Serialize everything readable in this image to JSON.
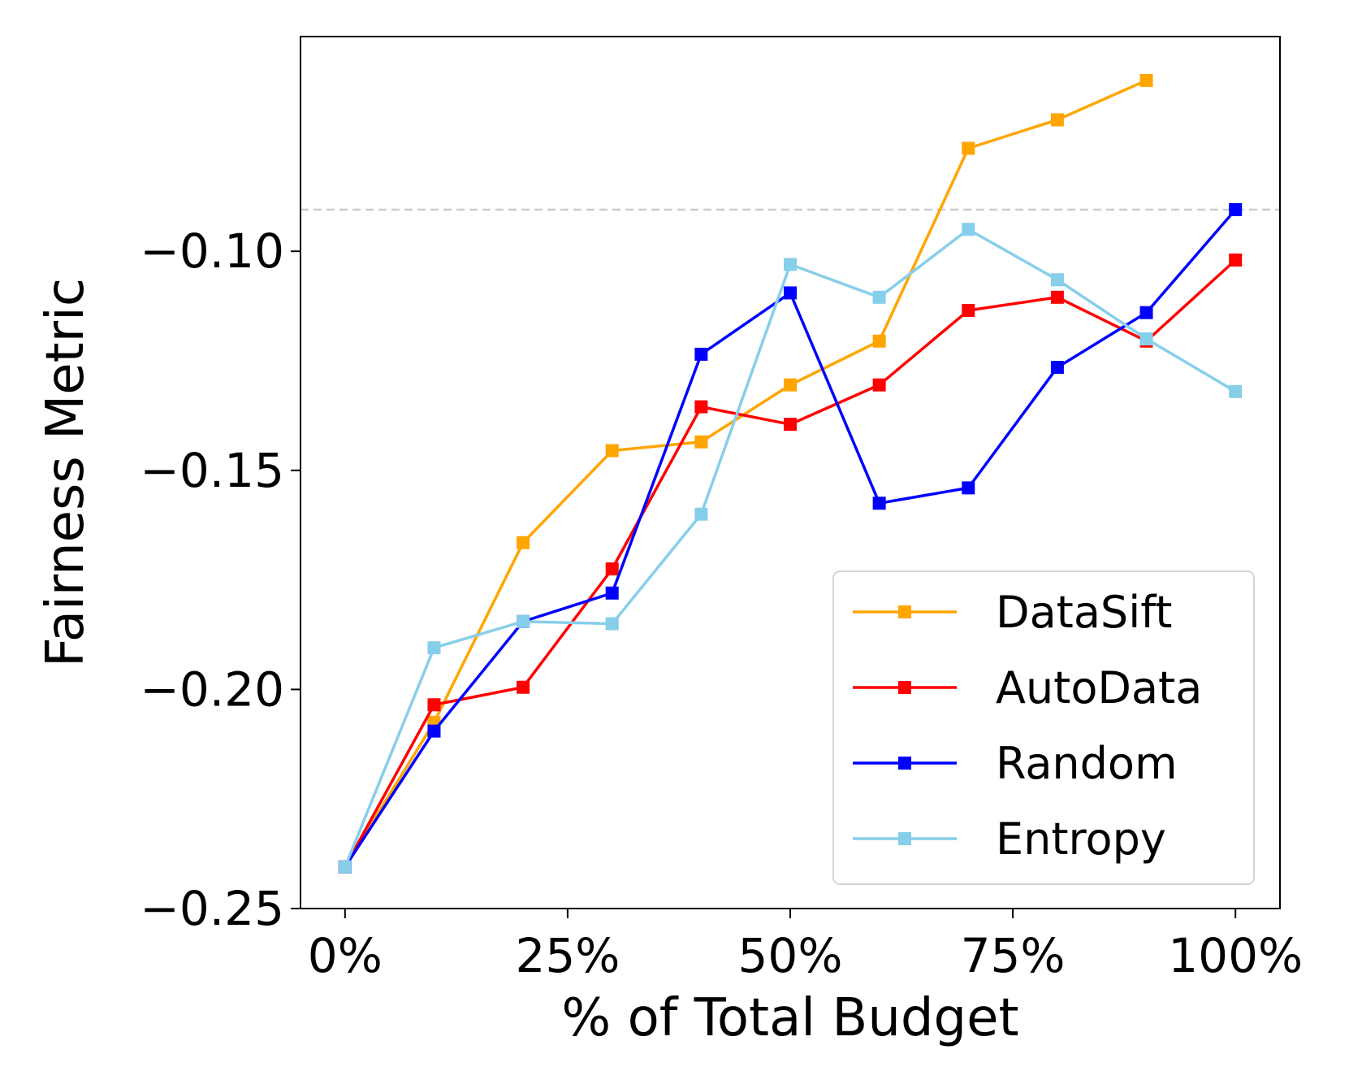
{
  "chart_data": {
    "type": "line",
    "title": "",
    "xlabel": "% of Total Budget",
    "ylabel": "Fairness Metric",
    "xlim": [
      -5,
      105
    ],
    "ylim": [
      -0.25,
      -0.051
    ],
    "x_ticks": [
      0,
      25,
      50,
      75,
      100
    ],
    "x_tick_labels": [
      "0%",
      "25%",
      "50%",
      "75%",
      "100%"
    ],
    "y_ticks": [
      -0.25,
      -0.2,
      -0.15,
      -0.1
    ],
    "y_tick_labels": [
      "−0.25",
      "−0.20",
      "−0.15",
      "−0.10"
    ],
    "x": [
      0,
      10,
      20,
      30,
      40,
      50,
      60,
      70,
      80,
      90,
      100
    ],
    "reference_line": {
      "y": -0.0905,
      "style": "dashed",
      "color": "#cccccc"
    },
    "series": [
      {
        "name": "DataSift",
        "color": "#FFA500",
        "values": [
          -0.2405,
          -0.2075,
          -0.1665,
          -0.1455,
          -0.1435,
          -0.1305,
          -0.1205,
          -0.0765,
          -0.07,
          -0.061,
          null
        ]
      },
      {
        "name": "AutoData",
        "color": "#FF0000",
        "values": [
          -0.2405,
          -0.2035,
          -0.1995,
          -0.1725,
          -0.1355,
          -0.1395,
          -0.1305,
          -0.1135,
          -0.1105,
          -0.1205,
          -0.102
        ]
      },
      {
        "name": "Random",
        "color": "#0000FF",
        "values": [
          -0.2405,
          -0.2095,
          -0.1845,
          -0.178,
          -0.1235,
          -0.1095,
          -0.1575,
          -0.154,
          -0.1265,
          -0.114,
          -0.0905
        ]
      },
      {
        "name": "Entropy",
        "color": "#87CEEB",
        "values": [
          -0.2405,
          -0.1905,
          -0.1845,
          -0.185,
          -0.16,
          -0.103,
          -0.1105,
          -0.095,
          -0.1065,
          -0.12,
          -0.132
        ]
      }
    ],
    "legend_position": "lower-right",
    "grid": false
  }
}
